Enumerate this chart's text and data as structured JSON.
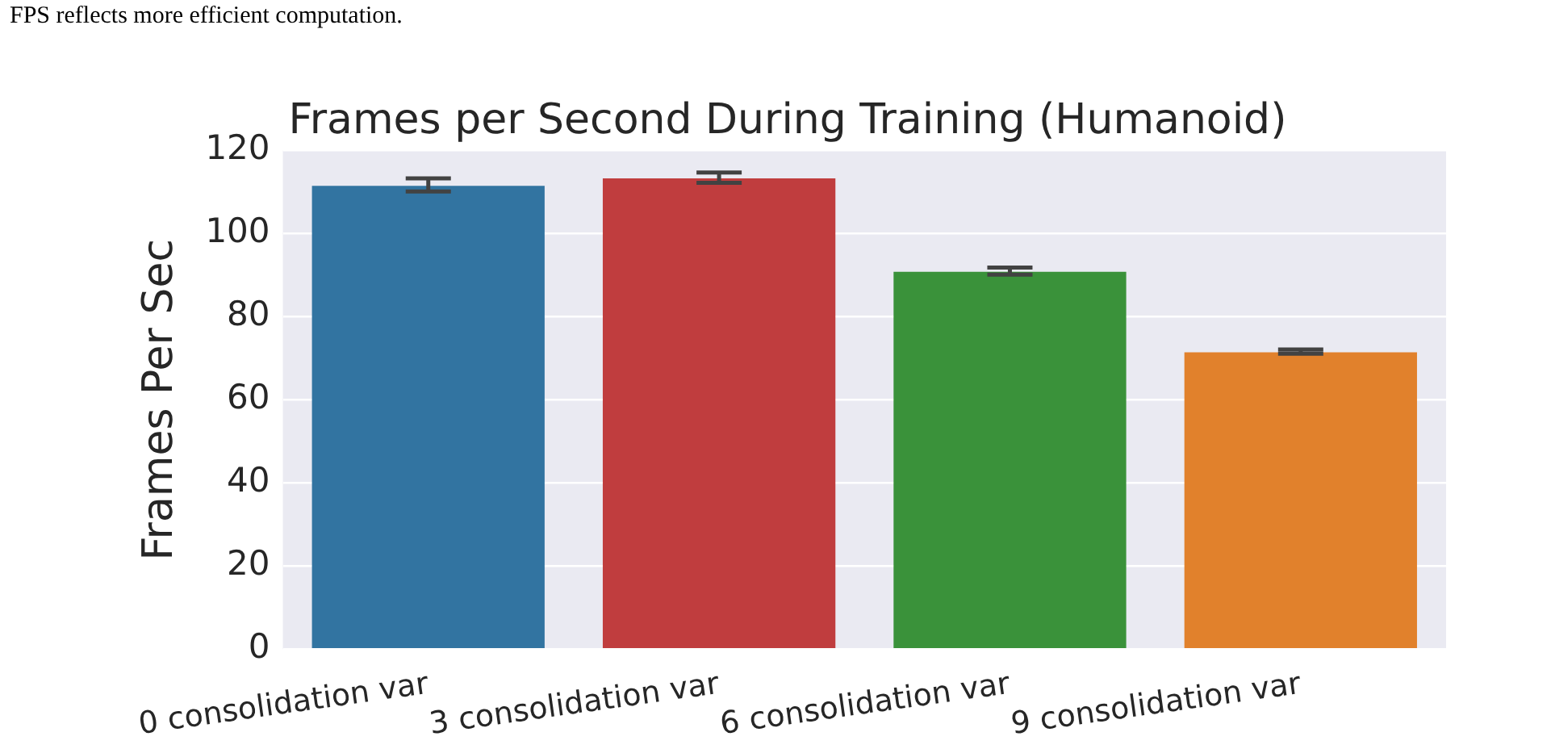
{
  "chart_data": {
    "type": "bar",
    "title": "Frames per Second During Training (Humanoid)",
    "ylabel": "Frames Per Sec",
    "categories": [
      "0 consolidation var",
      "3 consolidation var",
      "6 consolidation var",
      "9 consolidation var"
    ],
    "values": [
      111.5,
      113.3,
      90.8,
      71.4
    ],
    "colors": [
      "#3274a1",
      "#c03d3e",
      "#3a923a",
      "#e1812c"
    ],
    "errors": [
      [
        110.1,
        113.3
      ],
      [
        112.2,
        114.7
      ],
      [
        90.1,
        91.8
      ],
      [
        71.1,
        72.1
      ]
    ],
    "ylim": [
      0,
      120
    ],
    "yticks": [
      0,
      20,
      40,
      60,
      80,
      100,
      120
    ],
    "grid": "y",
    "legend": false,
    "annotations": [
      "FPS reflects more efficient computation."
    ]
  }
}
